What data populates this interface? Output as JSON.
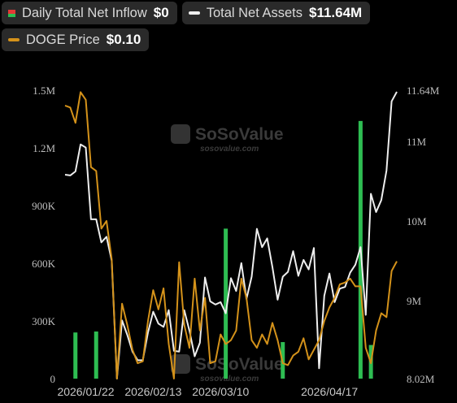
{
  "legend": {
    "inflow": {
      "label": "Daily Total Net Inflow",
      "value": "$0"
    },
    "assets": {
      "label": "Total Net Assets",
      "value": "$11.64M"
    },
    "price": {
      "label": "DOGE Price",
      "value": "$0.10"
    }
  },
  "watermark": {
    "name": "SoSoValue",
    "url": "sosovalue.com"
  },
  "colors": {
    "background": "#000000",
    "inflow_positive": "#2ebd52",
    "inflow_negative": "#e53935",
    "net_assets": "#eeeeee",
    "price": "#d4921a"
  },
  "chart_data": {
    "type": "bar+line",
    "x_ticks": [
      "2026/01/22",
      "2026/02/13",
      "2026/03/10",
      "2026/04/17"
    ],
    "x_tick_indices": [
      4,
      17,
      30,
      51
    ],
    "y_left": {
      "ticks": [
        "0",
        "300K",
        "600K",
        "900K",
        "1.2M",
        "1.5M"
      ],
      "ylim": [
        0,
        1500000
      ]
    },
    "y_right": {
      "ticks": [
        "8.02M",
        "9M",
        "10M",
        "11M",
        "11.64M"
      ],
      "ylim": [
        8020000,
        11640000
      ]
    },
    "grid": false,
    "legend_position": "top-left",
    "series": [
      {
        "key": "inflow",
        "kind": "bar",
        "axis": "left",
        "values": [
          0,
          0,
          240000,
          0,
          0,
          0,
          245000,
          0,
          0,
          0,
          0,
          0,
          0,
          0,
          0,
          0,
          0,
          0,
          0,
          0,
          0,
          0,
          0,
          0,
          0,
          0,
          0,
          0,
          0,
          0,
          0,
          780000,
          0,
          0,
          0,
          0,
          0,
          0,
          0,
          0,
          0,
          0,
          190000,
          0,
          0,
          0,
          0,
          0,
          0,
          0,
          0,
          0,
          0,
          0,
          0,
          0,
          0,
          1340000,
          0,
          175000,
          0,
          0,
          0,
          0,
          0
        ]
      },
      {
        "key": "assets",
        "kind": "line",
        "axis": "right",
        "values": [
          10.58,
          10.57,
          10.62,
          10.96,
          10.92,
          10.02,
          10.02,
          9.73,
          9.8,
          9.5,
          8.02,
          8.75,
          8.57,
          8.36,
          8.25,
          8.25,
          8.6,
          8.86,
          8.71,
          8.67,
          8.88,
          8.37,
          8.36,
          8.88,
          8.62,
          8.3,
          8.47,
          9.29,
          8.99,
          8.95,
          8.98,
          8.84,
          9.28,
          9.12,
          9.47,
          9.02,
          9.3,
          9.9,
          9.67,
          9.78,
          9.42,
          9.01,
          9.3,
          9.36,
          9.62,
          9.31,
          9.51,
          9.39,
          9.66,
          8.15,
          9.06,
          9.34,
          8.98,
          9.15,
          9.17,
          9.35,
          9.45,
          9.67,
          8.82,
          10.34,
          10.11,
          10.26,
          10.63,
          11.5,
          11.62
        ]
      },
      {
        "key": "price",
        "kind": "line",
        "axis": "left",
        "values": [
          1420000,
          1410000,
          1330000,
          1490000,
          1450000,
          1100000,
          1080000,
          780000,
          820000,
          620000,
          0,
          390000,
          280000,
          150000,
          80000,
          90000,
          300000,
          460000,
          360000,
          470000,
          180000,
          0,
          605000,
          280000,
          160000,
          520000,
          250000,
          420000,
          80000,
          90000,
          230000,
          180000,
          200000,
          250000,
          520000,
          420000,
          200000,
          160000,
          230000,
          180000,
          290000,
          200000,
          80000,
          70000,
          120000,
          140000,
          210000,
          100000,
          150000,
          200000,
          300000,
          370000,
          420000,
          490000,
          500000,
          520000,
          480000,
          480000,
          160000,
          80000,
          250000,
          340000,
          320000,
          560000,
          610000
        ]
      }
    ]
  }
}
